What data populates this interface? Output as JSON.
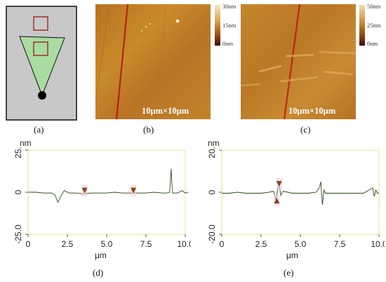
{
  "panels": {
    "a": {
      "label": "(a)"
    },
    "b": {
      "label": "(b)",
      "scale_text": "10μm×10μm",
      "colorbar_ticks": [
        "30nm",
        "15nm",
        "0nm"
      ]
    },
    "c": {
      "label": "(c)",
      "scale_text": "10μm×10μm",
      "colorbar_ticks": [
        "50nm",
        "25nm",
        "0nm"
      ]
    },
    "d": {
      "label": "(d)",
      "y_unit": "nm",
      "x_unit": "μm"
    },
    "e": {
      "label": "(e)",
      "y_unit": "nm",
      "x_unit": "μm"
    }
  },
  "chart_data": [
    {
      "panel": "d",
      "type": "line",
      "xlim": [
        0,
        10
      ],
      "ylim": [
        -25,
        25
      ],
      "x_ticks": [
        "0",
        "2.5",
        "5.0",
        "7.5",
        "10.0"
      ],
      "y_ticks": [
        "25.0",
        "0",
        "-25.0"
      ],
      "colors": {
        "trace": "#2f4f1f",
        "frame": "#e6e68a",
        "marker": "#7a4a14"
      },
      "series": [
        {
          "x": [
            0,
            0.5,
            1,
            1.5,
            1.7,
            1.9,
            2.1,
            2.3,
            2.6,
            3,
            3.5,
            4,
            4.5,
            5,
            5.5,
            6,
            6.5,
            7,
            7.5,
            8,
            8.5,
            8.8,
            9,
            9.05,
            9.1,
            9.15,
            9.2,
            9.3,
            9.5,
            9.8,
            10,
            10.2
          ],
          "y": [
            0,
            0,
            -0.5,
            -0.5,
            -1.5,
            -6,
            -2,
            1,
            -0.5,
            -0.5,
            -1,
            -0.5,
            -0.5,
            -0.5,
            0,
            -0.5,
            -0.5,
            -0.5,
            -0.5,
            0,
            -0.5,
            -0.5,
            0,
            6,
            14,
            5,
            -0.5,
            -0.5,
            -0.5,
            1,
            -0.5,
            0
          ]
        }
      ],
      "markers": [
        {
          "x": 3.6,
          "y": 1
        },
        {
          "x": 6.7,
          "y": 1
        }
      ]
    },
    {
      "panel": "e",
      "type": "line",
      "xlim": [
        0,
        10
      ],
      "ylim": [
        -20,
        20
      ],
      "x_ticks": [
        "0",
        "2.5",
        "5.0",
        "7.5",
        "10.0"
      ],
      "y_ticks": [
        "20.0",
        "0",
        "-20.0"
      ],
      "colors": {
        "trace": "#2f4f1f",
        "frame": "#e6e68a",
        "marker": "#7a4a14"
      },
      "series": [
        {
          "x": [
            0,
            0.5,
            1,
            1.5,
            2,
            2.5,
            3,
            3.3,
            3.45,
            3.55,
            3.65,
            3.75,
            3.9,
            4.2,
            4.5,
            5,
            5.5,
            6,
            6.2,
            6.3,
            6.4,
            6.5,
            6.6,
            7,
            7.5,
            8,
            8.5,
            9,
            9.6,
            9.7,
            9.8,
            9.9,
            10
          ],
          "y": [
            -0.5,
            -0.5,
            0,
            -0.5,
            -0.5,
            -0.5,
            0,
            0.5,
            -4,
            1,
            4,
            -1.5,
            0.5,
            0,
            -0.5,
            -0.5,
            -0.5,
            0,
            2,
            5,
            -6,
            1,
            -0.5,
            -0.5,
            -0.5,
            -0.5,
            -0.5,
            -0.5,
            2,
            -2,
            1,
            -0.5,
            -0.5
          ]
        }
      ],
      "markers": [
        {
          "x": 3.5,
          "y": -4,
          "direction": "up"
        },
        {
          "x": 3.65,
          "y": 4,
          "direction": "down"
        }
      ]
    }
  ]
}
